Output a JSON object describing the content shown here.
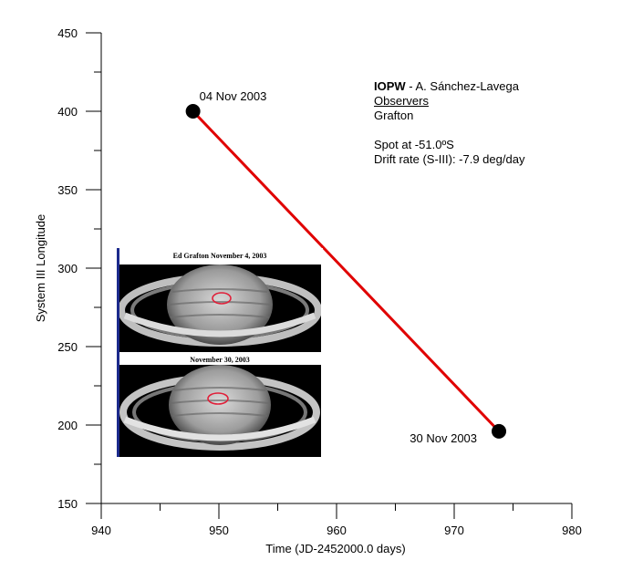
{
  "chart_data": {
    "type": "line",
    "title": "",
    "xlabel": "Time (JD-2452000.0 days)",
    "ylabel": "System III Longitude",
    "xlim": [
      940,
      980
    ],
    "ylim": [
      150,
      450
    ],
    "x_ticks": [
      940,
      950,
      960,
      970,
      980
    ],
    "y_ticks": [
      150,
      200,
      250,
      300,
      350,
      400,
      450
    ],
    "x_tick_labels": [
      "940",
      "950",
      "960",
      "970",
      "980"
    ],
    "y_tick_labels": [
      "150",
      "200",
      "250",
      "300",
      "350",
      "400",
      "450"
    ],
    "grid": false,
    "series": [
      {
        "points": [
          {
            "x": 947.8,
            "y": 400,
            "label": "04 Nov 2003"
          },
          {
            "x": 973.8,
            "y": 196,
            "label": "30 Nov 2003"
          }
        ],
        "marker_color": "#000000",
        "line_color": "#e00000"
      }
    ]
  },
  "info": {
    "org_bold": "IOPW",
    "org_rest": " - A. Sánchez-Lavega",
    "observers_heading": "Observers",
    "observer": "Grafton",
    "spot": "Spot at -51.0ºS",
    "drift": "Drift rate (S-III): -7.9 deg/day"
  },
  "inset": {
    "caption_top": "Ed Grafton   November 4, 2003",
    "caption_bottom": "November 30, 2003",
    "bar_color": "#1c2a8c",
    "circle_color": "#e0203a"
  }
}
